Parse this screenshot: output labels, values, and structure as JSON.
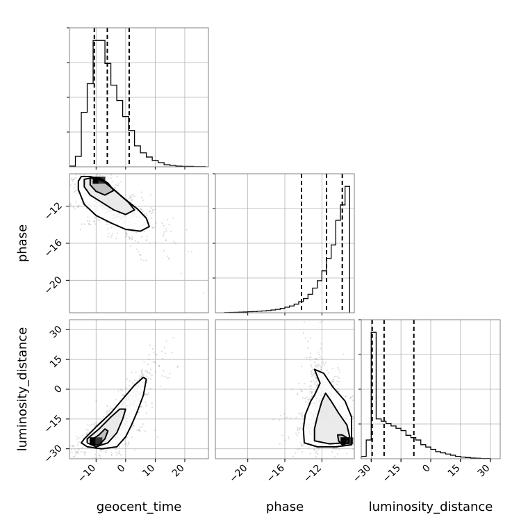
{
  "chart_data": {
    "type": "corner",
    "parameters": [
      "geocent_time",
      "phase",
      "luminosity_distance"
    ],
    "xlabels": [
      "geocent_time",
      "phase",
      "luminosity_distance"
    ],
    "ylabels": [
      "",
      "phase",
      "luminosity_distance"
    ],
    "ranges": {
      "geocent_time": [
        -19,
        28
      ],
      "phase": [
        -23.5,
        -8.5
      ],
      "luminosity_distance": [
        -35,
        35
      ]
    },
    "ticks": {
      "geocent_time": [
        -10,
        0,
        10,
        20
      ],
      "phase": [
        -20,
        -16,
        -12
      ],
      "luminosity_distance": [
        -30,
        -15,
        0,
        15,
        30
      ]
    },
    "tick_labels": {
      "geocent_time": [
        "−10",
        "0",
        "10",
        "20"
      ],
      "phase": [
        "−20",
        "−16",
        "−12"
      ],
      "luminosity_distance": [
        "−30",
        "−15",
        "0",
        "15",
        "30"
      ]
    },
    "quantiles": {
      "geocent_time": [
        -10.6,
        -6.2,
        1.2
      ],
      "phase": [
        -14.2,
        -11.5,
        -9.8
      ],
      "luminosity_distance": [
        -29.5,
        -23.5,
        -8.5
      ]
    },
    "histograms": {
      "geocent_time": {
        "edges": [
          -19,
          -17,
          -15,
          -13,
          -11,
          -9,
          -7,
          -5,
          -3,
          -1,
          1,
          3,
          5,
          7,
          9,
          11,
          13,
          15,
          17,
          19,
          21,
          23,
          25,
          27
        ],
        "counts": [
          0.5,
          7.5,
          39,
          59.5,
          90.5,
          90.5,
          74,
          58.5,
          47.5,
          36,
          26,
          15,
          10,
          7,
          4.5,
          3,
          1.5,
          1,
          0.5,
          0.3,
          0.3,
          0.1,
          0.1
        ]
      },
      "phase": {
        "edges": [
          -22.5,
          -22,
          -21.5,
          -21,
          -20.5,
          -20,
          -19.5,
          -19,
          -18.5,
          -18,
          -17.5,
          -17,
          -16.5,
          -16,
          -15.5,
          -15,
          -14.5,
          -14,
          -13.5,
          -13,
          -12.5,
          -12,
          -11.5,
          -11,
          -10.5,
          -10,
          -9.5,
          -9
        ],
        "counts": [
          0.3,
          0.5,
          0.7,
          1.0,
          1.3,
          1.7,
          2.0,
          2.5,
          3.0,
          3.5,
          4.5,
          5.5,
          7,
          9,
          11,
          14,
          18,
          23,
          30,
          40,
          52,
          68,
          88,
          110,
          150,
          175,
          205
        ]
      },
      "luminosity_distance": {
        "edges": [
          -35,
          -32.5,
          -30,
          -27.5,
          -25,
          -22.5,
          -20,
          -17.5,
          -15,
          -12.5,
          -10,
          -7.5,
          -5,
          -2.5,
          0,
          2.5,
          5,
          7.5,
          10,
          12.5,
          15,
          17.5,
          20,
          22.5,
          25,
          27.5,
          30
        ],
        "counts": [
          1,
          8,
          54,
          17,
          16,
          15,
          14,
          13,
          12,
          10,
          9,
          8,
          6,
          5,
          4,
          3,
          2.5,
          2,
          1.5,
          1,
          0.7,
          0.5,
          0.3,
          0.2,
          0.1,
          0.1
        ]
      }
    },
    "contours": {
      "geocent_time|phase": {
        "peak": [
          -9,
          -9.2
        ],
        "levels": [
          [
            [
              -16,
              -9.3
            ],
            [
              -15,
              -8.8
            ],
            [
              -12,
              -8.8
            ],
            [
              -8,
              -9.2
            ],
            [
              -4,
              -10.2
            ],
            [
              0,
              -11.3
            ],
            [
              4,
              -12.3
            ],
            [
              7,
              -13.3
            ],
            [
              8,
              -14.2
            ],
            [
              5,
              -14.7
            ],
            [
              0,
              -14.5
            ],
            [
              -5,
              -13.8
            ],
            [
              -10,
              -13
            ],
            [
              -14,
              -11.8
            ],
            [
              -16,
              -10.2
            ]
          ],
          [
            [
              -14,
              -9.1
            ],
            [
              -11,
              -8.9
            ],
            [
              -7,
              -9.4
            ],
            [
              -3,
              -10.5
            ],
            [
              1,
              -11.6
            ],
            [
              3,
              -12.4
            ],
            [
              0,
              -12.9
            ],
            [
              -4,
              -12.4
            ],
            [
              -8,
              -11.6
            ],
            [
              -12,
              -10.8
            ],
            [
              -14,
              -9.9
            ]
          ],
          [
            [
              -12,
              -9.0
            ],
            [
              -9,
              -8.9
            ],
            [
              -6,
              -9.5
            ],
            [
              -4,
              -10.3
            ],
            [
              -7,
              -10.8
            ],
            [
              -10,
              -10.4
            ],
            [
              -12,
              -9.7
            ]
          ]
        ]
      },
      "geocent_time|luminosity_distance": {
        "peak": [
          -10,
          -26
        ],
        "levels": [
          [
            [
              -14,
              -25
            ],
            [
              -10,
              -19
            ],
            [
              -5,
              -12
            ],
            [
              -1,
              -5
            ],
            [
              3,
              2
            ],
            [
              6,
              6
            ],
            [
              7,
              5
            ],
            [
              6,
              -3
            ],
            [
              4,
              -11
            ],
            [
              2,
              -18
            ],
            [
              0,
              -24
            ],
            [
              -3,
              -29
            ],
            [
              -8,
              -30
            ],
            [
              -13,
              -29
            ],
            [
              -15,
              -27
            ]
          ],
          [
            [
              -13,
              -25
            ],
            [
              -9,
              -20
            ],
            [
              -5,
              -14
            ],
            [
              -2,
              -10
            ],
            [
              0,
              -10
            ],
            [
              -1,
              -15
            ],
            [
              -3,
              -22
            ],
            [
              -6,
              -27
            ],
            [
              -10,
              -29
            ],
            [
              -13,
              -27
            ]
          ],
          [
            [
              -12,
              -26
            ],
            [
              -9,
              -23
            ],
            [
              -7,
              -20
            ],
            [
              -6,
              -21
            ],
            [
              -7,
              -25
            ],
            [
              -9,
              -28
            ],
            [
              -11,
              -28
            ]
          ]
        ]
      },
      "phase|luminosity_distance": {
        "peak": [
          -9.3,
          -26
        ],
        "levels": [
          [
            [
              -13.9,
              -27
            ],
            [
              -14,
              -20
            ],
            [
              -13.8,
              -13
            ],
            [
              -13.2,
              -6
            ],
            [
              -12.8,
              -3
            ],
            [
              -12.2,
              3
            ],
            [
              -12.8,
              10
            ],
            [
              -11.8,
              8
            ],
            [
              -10.8,
              1
            ],
            [
              -9.5,
              -6
            ],
            [
              -8.8,
              -14
            ],
            [
              -8.8,
              -22
            ],
            [
              -8.8,
              -28
            ],
            [
              -10.5,
              -29
            ],
            [
              -12.5,
              -29
            ]
          ],
          [
            [
              -12.8,
              -26
            ],
            [
              -12.8,
              -20
            ],
            [
              -12.5,
              -14
            ],
            [
              -12,
              -6
            ],
            [
              -11.6,
              -2
            ],
            [
              -11,
              -6
            ],
            [
              -10.2,
              -12
            ],
            [
              -9.3,
              -18
            ],
            [
              -9,
              -24
            ],
            [
              -9.6,
              -27
            ],
            [
              -11.2,
              -27.5
            ]
          ],
          [
            [
              -10.2,
              -26
            ],
            [
              -10.3,
              -23
            ],
            [
              -9.8,
              -23
            ],
            [
              -9.1,
              -25
            ],
            [
              -9.1,
              -27
            ],
            [
              -9.8,
              -28
            ]
          ]
        ]
      }
    },
    "scatter_hint": "background scatter points drawn from parameter distributions"
  }
}
